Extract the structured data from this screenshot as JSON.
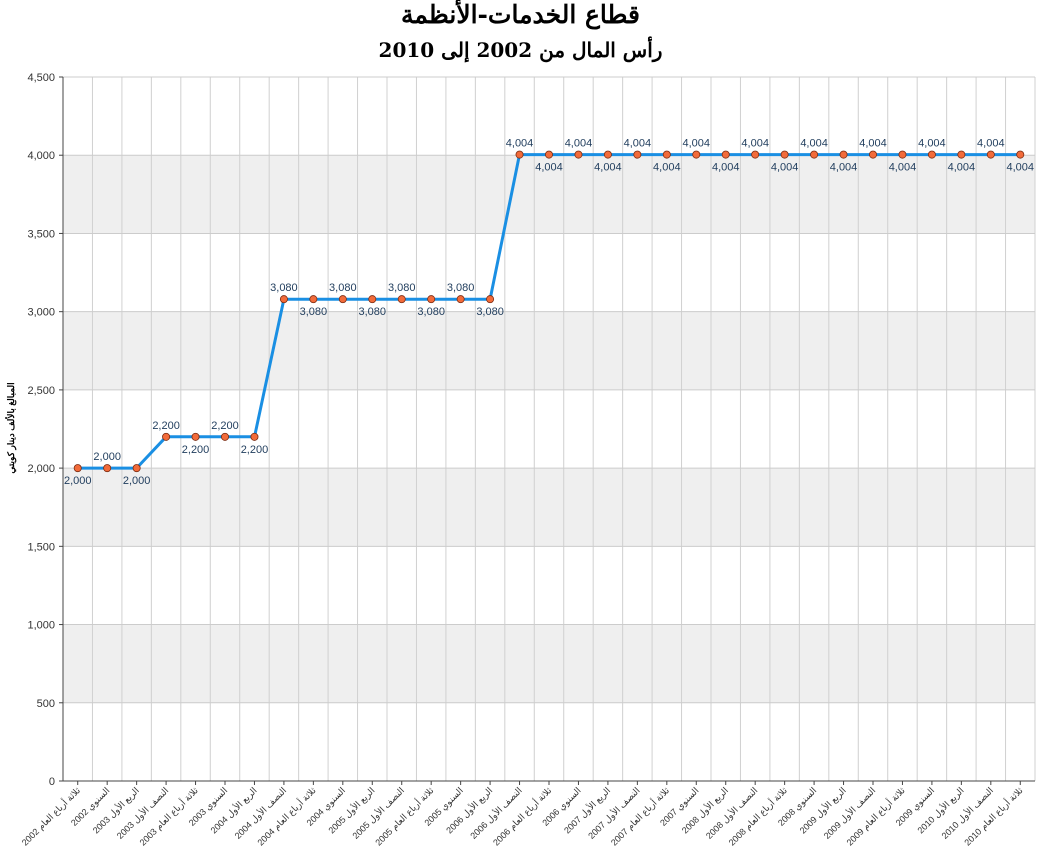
{
  "chart_data": {
    "type": "line",
    "title": "قطاع الخدمات-الأنظمة",
    "subtitle": "رأس المال من 2002 إلى 2010",
    "ylabel": "المبالغ بالألف دينار كويتي",
    "xlabel": "",
    "ylim": [
      0,
      4500
    ],
    "yticks": [
      0,
      500,
      1000,
      1500,
      2000,
      2500,
      3000,
      3500,
      4000,
      4500
    ],
    "ytick_labels": [
      "0",
      "500",
      "1,000",
      "1,500",
      "2,000",
      "2,500",
      "3,000",
      "3,500",
      "4,000",
      "4,500"
    ],
    "grid": true,
    "line_color": "#1a8fe3",
    "marker_color": "#f26b3a",
    "band_color": "#efefef",
    "categories": [
      "ثلاثة أرباع العام 2002",
      "السنوي 2002",
      "الربع الأول 2003",
      "النصف الأول 2003",
      "ثلاثة أرباع العام 2003",
      "السنوي 2003",
      "الربع الأول 2004",
      "النصف الأول 2004",
      "ثلاثة أرباع العام 2004",
      "السنوي 2004",
      "الربع الأول 2005",
      "النصف الأول 2005",
      "ثلاثة أرباع العام 2005",
      "السنوي 2005",
      "الربع الأول 2006",
      "النصف الأول 2006",
      "ثلاثة أرباع العام 2006",
      "السنوي 2006",
      "الربع الأول 2007",
      "النصف الأول 2007",
      "ثلاثة أرباع العام 2007",
      "السنوي 2007",
      "الربع الأول 2008",
      "النصف الأول 2008",
      "ثلاثة أرباع العام 2008",
      "السنوي 2008",
      "الربع الأول 2009",
      "النصف الأول 2009",
      "ثلاثة أرباع العام 2009",
      "السنوي 2009",
      "الربع الأول 2010",
      "النصف الأول 2010",
      "ثلاثة أرباع العام 2010"
    ],
    "values": [
      2000,
      2000,
      2000,
      2200,
      2200,
      2200,
      2200,
      3080,
      3080,
      3080,
      3080,
      3080,
      3080,
      3080,
      3080,
      4004,
      4004,
      4004,
      4004,
      4004,
      4004,
      4004,
      4004,
      4004,
      4004,
      4004,
      4004,
      4004,
      4004,
      4004,
      4004,
      4004,
      4004
    ],
    "data_labels": [
      "2,000",
      "2,000",
      "2,000",
      "2,200",
      "2,200",
      "2,200",
      "2,200",
      "3,080",
      "3,080",
      "3,080",
      "3,080",
      "3,080",
      "3,080",
      "3,080",
      "3,080",
      "4,004",
      "4,004",
      "4,004",
      "4,004",
      "4,004",
      "4,004",
      "4,004",
      "4,004",
      "4,004",
      "4,004",
      "4,004",
      "4,004",
      "4,004",
      "4,004",
      "4,004",
      "4,004",
      "4,004",
      "4,004"
    ]
  }
}
